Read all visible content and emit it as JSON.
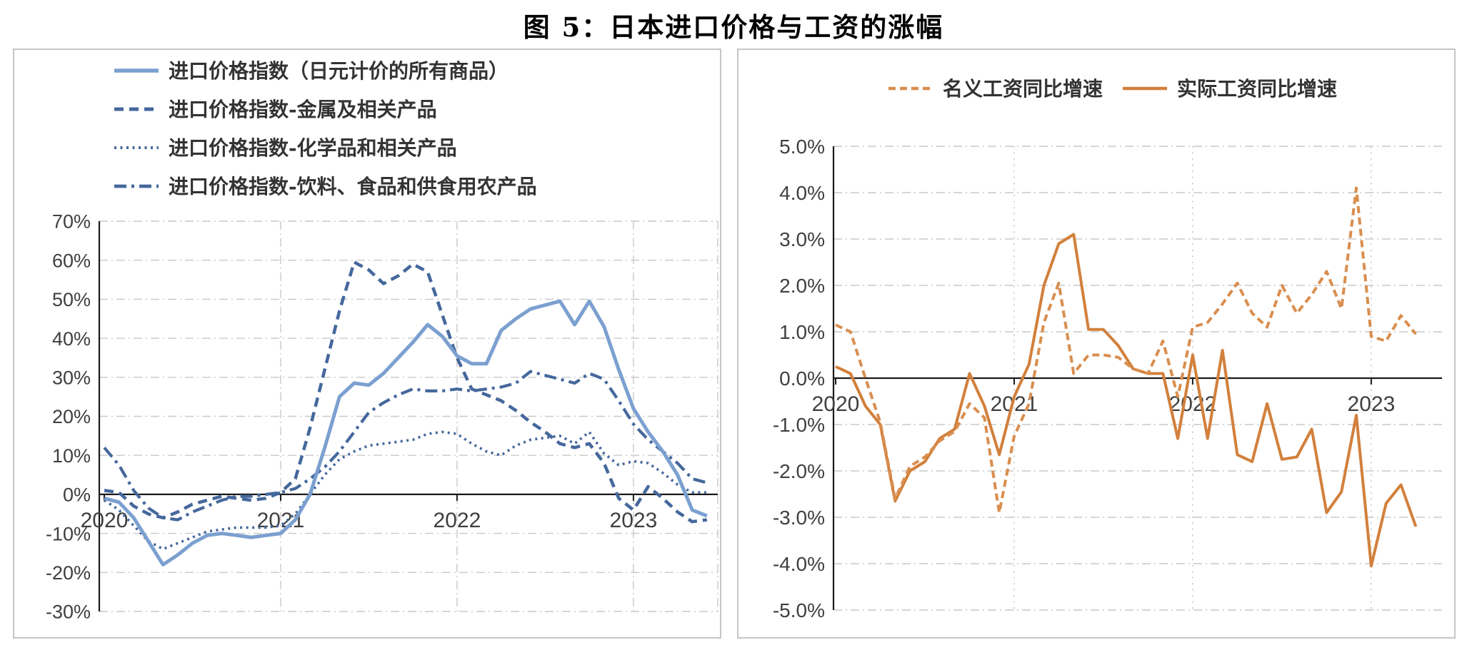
{
  "page": {
    "title": "图 5：日本进口价格与工资的涨幅",
    "background": "#ffffff"
  },
  "chart_data": [
    {
      "id": "import-price-chart",
      "type": "line",
      "title": "",
      "unit": "% YoY",
      "x_start": "2020-01",
      "x_end": "2023-06",
      "x_interval": "month",
      "x_tick_labels": [
        "2020",
        "2021",
        "2022",
        "2023"
      ],
      "y_ticks": [
        70,
        60,
        50,
        40,
        30,
        20,
        10,
        0,
        -10,
        -20,
        -30
      ],
      "y_tick_labels": [
        "70%",
        "60%",
        "50%",
        "40%",
        "30%",
        "20%",
        "10%",
        "0%",
        "-10%",
        "-20%",
        "-30%"
      ],
      "ylim": [
        -30,
        70
      ],
      "grid": true,
      "legend_position": "top-left",
      "series": [
        {
          "name": "进口价格指数（日元计价的所有商品）",
          "style": "solid",
          "color": "#7BA0D0",
          "width": 5,
          "values": [
            -1,
            -2,
            -6,
            -12,
            -18,
            -15.5,
            -12.5,
            -10.5,
            -10,
            -10.5,
            -11,
            -10.5,
            -10,
            -6.5,
            0,
            12,
            25,
            28.5,
            28,
            31,
            35,
            39,
            43.5,
            40.5,
            35.5,
            33.5,
            33.5,
            42,
            45,
            47.5,
            48.5,
            49.5,
            43.5,
            49.5,
            43,
            32,
            22,
            16,
            11,
            5,
            -4,
            -5.5
          ]
        },
        {
          "name": "进口价格指数-金属及相关产品",
          "style": "dashed",
          "color": "#45689C",
          "width": 4.5,
          "dash": "13 8",
          "values": [
            1,
            0.5,
            -3,
            -5,
            -6,
            -4.5,
            -2.5,
            -1.5,
            -0.5,
            -1,
            -1.5,
            -1,
            0.5,
            4,
            17,
            32,
            47,
            59.5,
            57.5,
            54,
            56,
            59,
            57,
            46,
            35,
            27,
            25.5,
            24,
            21.5,
            18.5,
            16,
            13,
            12,
            13,
            8,
            -1,
            -4,
            2,
            -1,
            -4.5,
            -7,
            -6.5
          ]
        },
        {
          "name": "进口价格指数-化学品和相关产品",
          "style": "dotted",
          "color": "#45689C",
          "width": 3.6,
          "dash": "3 5.5",
          "values": [
            -1.5,
            -4,
            -8,
            -12,
            -14,
            -12.5,
            -11,
            -9.5,
            -9,
            -8.5,
            -8.5,
            -8.5,
            -8,
            -5,
            0,
            5,
            9,
            11,
            12.5,
            13,
            13.5,
            14,
            15.5,
            16,
            15.5,
            13,
            11,
            10,
            12.5,
            14,
            14.5,
            15,
            13,
            16,
            10.5,
            7.5,
            8.5,
            8,
            5.5,
            2.5,
            0.5,
            0.5
          ]
        },
        {
          "name": "进口价格指数-饮料、食品和供食用农产品",
          "style": "dash-dot",
          "color": "#45689C",
          "width": 4.2,
          "dash": "17 7 4 7",
          "values": [
            12,
            7.5,
            1,
            -3.5,
            -6,
            -6.5,
            -4.5,
            -3,
            -1.5,
            -0.5,
            -0.5,
            0,
            0.5,
            1.5,
            4,
            7,
            11,
            16,
            21,
            23.5,
            25.5,
            27,
            26.5,
            26.5,
            27,
            26.5,
            27,
            27.5,
            28.5,
            31.5,
            30.5,
            29.5,
            28.5,
            31,
            29.5,
            24,
            18,
            14,
            11,
            8,
            4,
            3
          ]
        }
      ]
    },
    {
      "id": "wage-growth-chart",
      "type": "line",
      "title": "",
      "unit": "% YoY",
      "x_start": "2020-01",
      "x_end": "2023-04",
      "x_interval": "month",
      "x_tick_labels": [
        "2020",
        "2021",
        "2022",
        "2023"
      ],
      "y_ticks": [
        5,
        4,
        3,
        2,
        1,
        0,
        -1,
        -2,
        -3,
        -4,
        -5
      ],
      "y_tick_labels": [
        "5.0%",
        "4.0%",
        "3.0%",
        "2.0%",
        "1.0%",
        "0.0%",
        "-1.0%",
        "-2.0%",
        "-3.0%",
        "-4.0%",
        "-5.0%"
      ],
      "ylim": [
        -5,
        5
      ],
      "grid": true,
      "legend_position": "top-center",
      "series": [
        {
          "name": "名义工资同比增速",
          "style": "dashed",
          "color": "#D98E4F",
          "width": 4,
          "dash": "10 6",
          "values": [
            1.15,
            1.0,
            0.0,
            -0.95,
            -2.6,
            -1.9,
            -1.7,
            -1.35,
            -1.15,
            -0.55,
            -0.85,
            -2.9,
            -1.25,
            -0.55,
            1.2,
            2.05,
            0.1,
            0.5,
            0.5,
            0.45,
            0.2,
            0.1,
            0.8,
            -0.4,
            1.1,
            1.2,
            1.6,
            2.05,
            1.4,
            1.1,
            2.0,
            1.4,
            1.8,
            2.3,
            1.5,
            4.1,
            0.9,
            0.8,
            1.35,
            0.95
          ]
        },
        {
          "name": "实际工资同比增速",
          "style": "solid",
          "color": "#D2803C",
          "width": 4,
          "values": [
            0.25,
            0.1,
            -0.6,
            -1.0,
            -2.65,
            -2.0,
            -1.8,
            -1.3,
            -1.1,
            0.1,
            -0.6,
            -1.65,
            -0.4,
            0.3,
            2.0,
            2.9,
            3.1,
            1.05,
            1.05,
            0.7,
            0.2,
            0.1,
            0.1,
            -1.3,
            0.5,
            -1.3,
            0.6,
            -1.65,
            -1.8,
            -0.55,
            -1.75,
            -1.7,
            -1.1,
            -2.9,
            -2.45,
            -0.8,
            -4.05,
            -2.7,
            -2.3,
            -3.2
          ]
        }
      ]
    }
  ],
  "colors": {
    "blue_light": "#7BA0D0",
    "blue_dark": "#45689C",
    "orange_solid": "#D2803C",
    "orange_dashed": "#D98E4F",
    "gridline": "#c9c9c9",
    "axis": "#1a1a1a",
    "tick_label": "#3f3f3f",
    "panel_border": "#c6c6c6"
  }
}
